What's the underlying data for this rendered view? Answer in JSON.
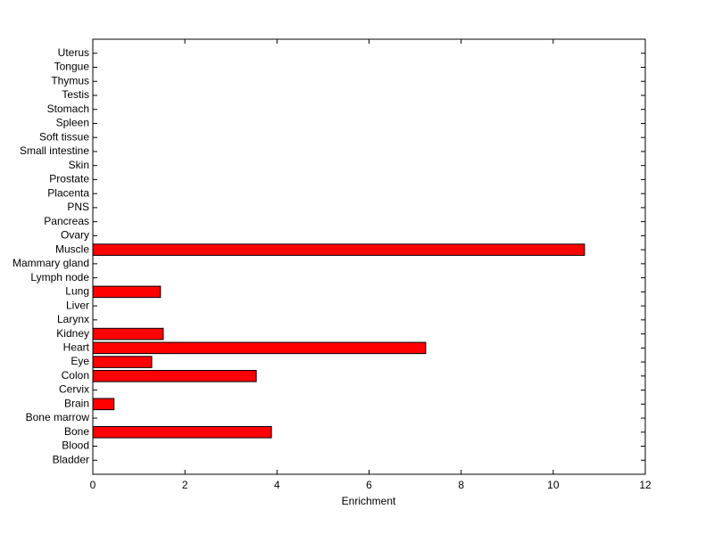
{
  "chart_data": {
    "type": "barh",
    "xlabel": "Enrichment",
    "categories": [
      "Bladder",
      "Blood",
      "Bone",
      "Bone marrow",
      "Brain",
      "Cervix",
      "Colon",
      "Eye",
      "Heart",
      "Kidney",
      "Larynx",
      "Liver",
      "Lung",
      "Lymph node",
      "Mammary gland",
      "Muscle",
      "Ovary",
      "Pancreas",
      "PNS",
      "Placenta",
      "Prostate",
      "Skin",
      "Small intestine",
      "Soft tissue",
      "Spleen",
      "Stomach",
      "Testis",
      "Thymus",
      "Tongue",
      "Uterus"
    ],
    "values": [
      0,
      0,
      3.88,
      0,
      0.46,
      0,
      3.55,
      1.28,
      7.23,
      1.53,
      0,
      0,
      1.47,
      0,
      0,
      10.68,
      0,
      0,
      0,
      0,
      0,
      0,
      0,
      0,
      0,
      0,
      0,
      0,
      0,
      0
    ],
    "color": "#ff0000",
    "xlim": [
      0,
      12
    ],
    "xticks": [
      0,
      2,
      4,
      6,
      8,
      10,
      12
    ]
  }
}
